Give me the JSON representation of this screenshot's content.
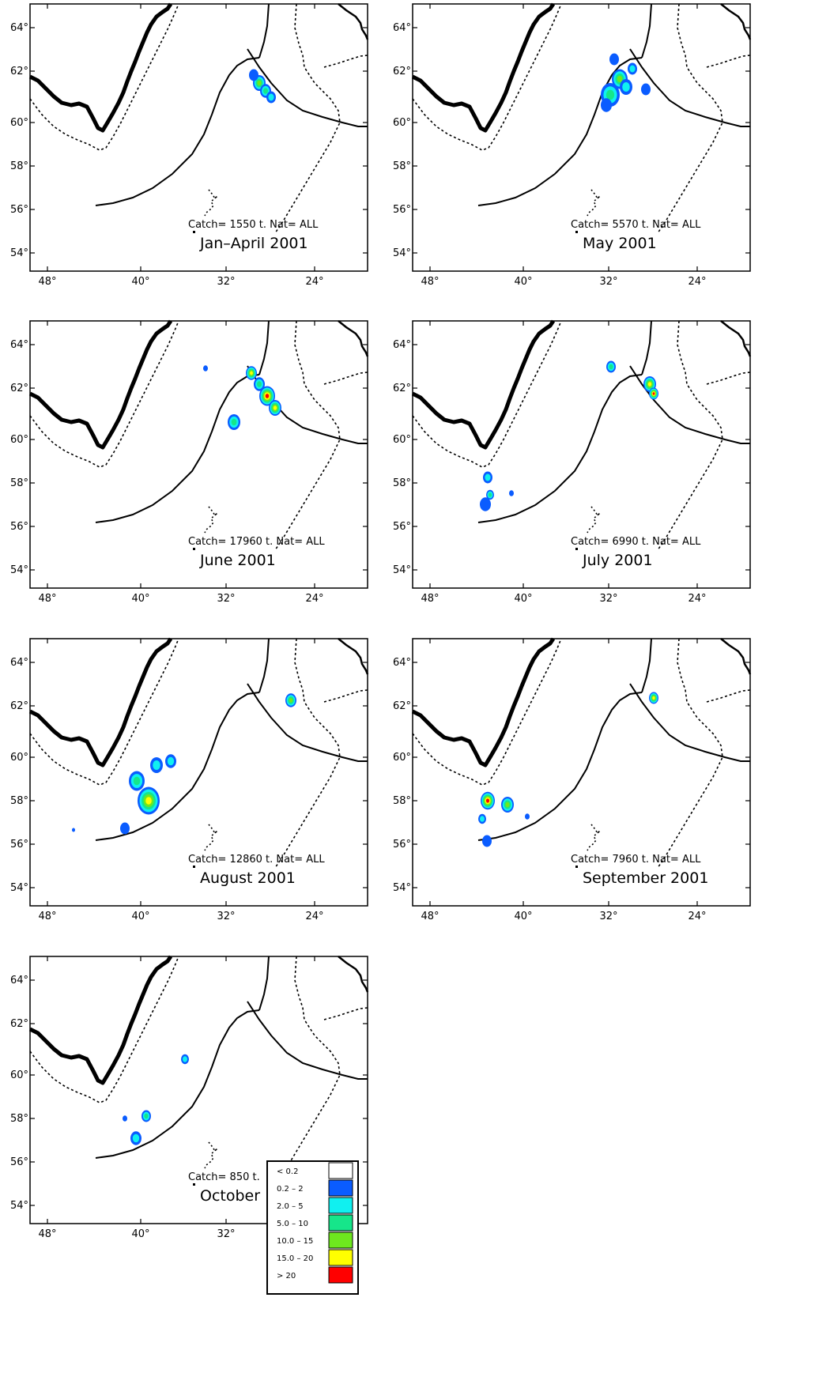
{
  "axis": {
    "lat_labels": [
      "64°",
      "62°",
      "60°",
      "58°",
      "56°",
      "54°"
    ],
    "lon_labels": [
      "48°",
      "40°",
      "32°",
      "24°"
    ]
  },
  "panels": [
    {
      "title": "Jan–April 2001",
      "catch": "Catch= 1550 t. Nat= ALL"
    },
    {
      "title": "May 2001",
      "catch": "Catch= 5570 t. Nat= ALL"
    },
    {
      "title": "June 2001",
      "catch": "Catch= 17960 t. Nat= ALL"
    },
    {
      "title": "July 2001",
      "catch": "Catch= 6990 t. Nat= ALL"
    },
    {
      "title": "August 2001",
      "catch": "Catch= 12860 t. Nat= ALL"
    },
    {
      "title": "September 2001",
      "catch": "Catch= 7960 t. Nat= ALL"
    },
    {
      "title": "October",
      "catch": "Catch= 850 t."
    }
  ],
  "legend": {
    "items": [
      {
        "label": "< 0.2",
        "color": "#ffffff"
      },
      {
        "label": "0.2 – 2",
        "color": "#0a5cff"
      },
      {
        "label": "2.0 – 5",
        "color": "#10f0f0"
      },
      {
        "label": "5.0 – 10",
        "color": "#16e68a"
      },
      {
        "label": "10.0 – 15",
        "color": "#6ee81e"
      },
      {
        "label": "15.0 – 20",
        "color": "#ffff00"
      },
      {
        "label": "> 20",
        "color": "#ff0000"
      }
    ]
  }
}
